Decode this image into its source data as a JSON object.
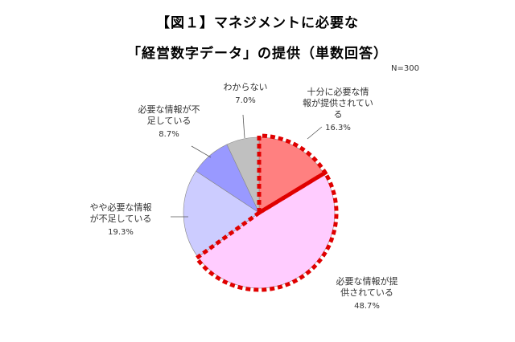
{
  "title_line1": "【図１】マネジメントに必要な",
  "title_line2": "「経営数字データ」の提供（単数回答）",
  "sample_size": "N=300",
  "chart_data": {
    "type": "pie",
    "title": "【図１】マネジメントに必要な「経営数字データ」の提供（単数回答）",
    "unit": "%",
    "slices": [
      {
        "label_lines": [
          "十分に必要な情",
          "報が提供されてい",
          "る"
        ],
        "value": 16.3,
        "value_text": "16.3%",
        "color": "#ff8080",
        "highlighted": true
      },
      {
        "label_lines": [
          "必要な情報が提",
          "供されている"
        ],
        "value": 48.7,
        "value_text": "48.7%",
        "color": "#ffccff",
        "highlighted": true
      },
      {
        "label_lines": [
          "やや必要な情報",
          "が不足している"
        ],
        "value": 19.3,
        "value_text": "19.3%",
        "color": "#ccccff",
        "highlighted": false
      },
      {
        "label_lines": [
          "必要な情報が不",
          "足している"
        ],
        "value": 8.7,
        "value_text": "8.7%",
        "color": "#9999ff",
        "highlighted": false
      },
      {
        "label_lines": [
          "わからない"
        ],
        "value": 7.0,
        "value_text": "7.0%",
        "color": "#c0c0c0",
        "highlighted": false
      }
    ],
    "highlight_color": "#e00000",
    "start": "12 o'clock",
    "direction": "clockwise"
  }
}
